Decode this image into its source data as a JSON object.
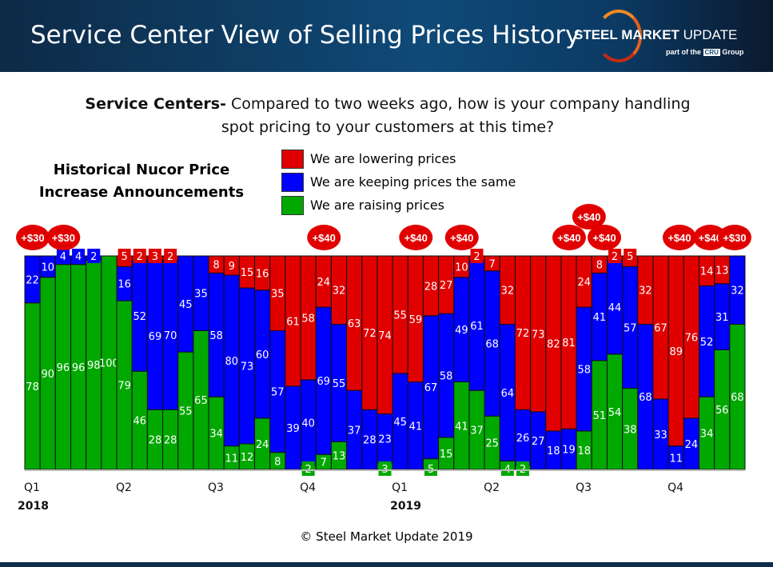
{
  "header": {
    "title": "Service Center View of Selling Prices History",
    "logo_bold": "STEEL MARKET",
    "logo_thin": " UPDATE",
    "logo_sub_pre": "part of the",
    "logo_sub_badge": "CRU",
    "logo_sub_post": "Group"
  },
  "question": {
    "bold": "Service Centers-",
    "text": " Compared to two weeks ago, how is your company handling spot pricing to your customers at this time?"
  },
  "history_title": "Historical Nucor Price Increase Announcements",
  "footer": "© Steel Market Update 2019",
  "chart_data": {
    "type": "bar",
    "stacked": true,
    "title": "Service Center View of Selling Prices History",
    "ylim": [
      0,
      100
    ],
    "legend": [
      {
        "name": "We are lowering prices",
        "color": "#e10000"
      },
      {
        "name": "We are keeping prices the same",
        "color": "#0000ff"
      },
      {
        "name": "We are raising prices",
        "color": "#00a800"
      }
    ],
    "series": [
      {
        "name": "We are raising prices",
        "color": "#00a800",
        "values": [
          78,
          90,
          96,
          96,
          98,
          100,
          79,
          46,
          28,
          28,
          55,
          65,
          34,
          11,
          12,
          24,
          8,
          0,
          2,
          7,
          13,
          0,
          0,
          3,
          0,
          0,
          5,
          15,
          41,
          37,
          25,
          4,
          2,
          0,
          0,
          0,
          18,
          51,
          54,
          38,
          0,
          0,
          0,
          0,
          34,
          56,
          68
        ]
      },
      {
        "name": "We are keeping prices the same",
        "color": "#0000ff",
        "values": [
          22,
          10,
          4,
          4,
          2,
          0,
          16,
          52,
          69,
          70,
          45,
          35,
          58,
          80,
          73,
          60,
          57,
          39,
          40,
          69,
          55,
          37,
          28,
          23,
          45,
          41,
          67,
          58,
          49,
          61,
          68,
          64,
          26,
          27,
          18,
          19,
          58,
          41,
          44,
          57,
          68,
          33,
          11,
          24,
          52,
          31,
          32
        ]
      },
      {
        "name": "We are lowering prices",
        "color": "#e10000",
        "values": [
          0,
          0,
          0,
          0,
          0,
          0,
          5,
          2,
          3,
          2,
          0,
          0,
          8,
          9,
          15,
          16,
          35,
          61,
          58,
          24,
          32,
          63,
          72,
          74,
          55,
          59,
          28,
          27,
          10,
          2,
          7,
          32,
          72,
          73,
          82,
          81,
          24,
          8,
          2,
          5,
          32,
          67,
          89,
          76,
          14,
          13,
          0
        ]
      }
    ],
    "quarter_labels": [
      {
        "bar": 0,
        "label": "Q1",
        "year": "2018"
      },
      {
        "bar": 6,
        "label": "Q2"
      },
      {
        "bar": 12,
        "label": "Q3"
      },
      {
        "bar": 18,
        "label": "Q4"
      },
      {
        "bar": 24,
        "label": "Q1",
        "year": "2019"
      },
      {
        "bar": 30,
        "label": "Q2"
      },
      {
        "bar": 36,
        "label": "Q3"
      },
      {
        "bar": 42,
        "label": "Q4"
      }
    ],
    "announcements": [
      {
        "bar": 0,
        "label": "+$30"
      },
      {
        "bar": 2,
        "label": "+$30"
      },
      {
        "bar": 19,
        "label": "+$40"
      },
      {
        "bar": 25,
        "label": "+$40"
      },
      {
        "bar": 28,
        "label": "+$40"
      },
      {
        "bar": 35,
        "label": "+$40"
      },
      {
        "bar": 36.3,
        "label": "+$40",
        "raised": true
      },
      {
        "bar": 37.3,
        "label": "+$40"
      },
      {
        "bar": 42.2,
        "label": "+$40"
      },
      {
        "bar": 44.2,
        "label": "+$40"
      },
      {
        "bar": 45.8,
        "label": "+$30"
      }
    ]
  }
}
